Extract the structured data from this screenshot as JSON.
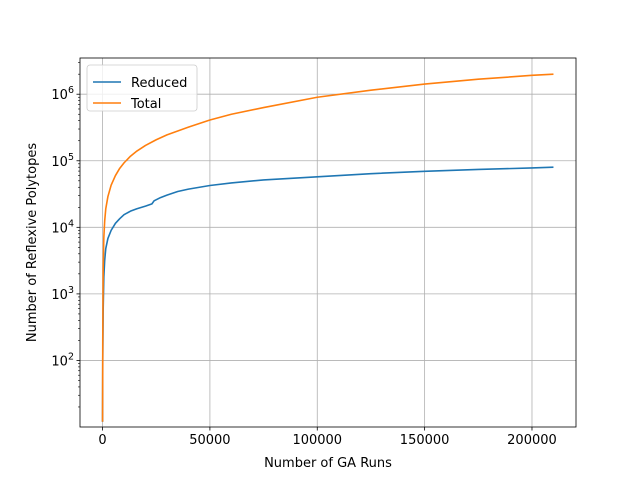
{
  "chart_data": {
    "type": "line",
    "title": "",
    "xlabel": "Number of GA Runs",
    "ylabel": "Number of Reflexive Polytopes",
    "xscale": "linear",
    "yscale": "log",
    "xlim": [
      -10500,
      220500
    ],
    "ylim": [
      10,
      3500000
    ],
    "grid": true,
    "legend_position": "top-left",
    "x_ticks": [
      {
        "value": 0,
        "label": "0"
      },
      {
        "value": 50000,
        "label": "50000"
      },
      {
        "value": 100000,
        "label": "100000"
      },
      {
        "value": 150000,
        "label": "150000"
      },
      {
        "value": 200000,
        "label": "200000"
      }
    ],
    "y_ticks": [
      {
        "value": 100,
        "base": "10",
        "exp": "2"
      },
      {
        "value": 1000,
        "base": "10",
        "exp": "3"
      },
      {
        "value": 10000,
        "base": "10",
        "exp": "4"
      },
      {
        "value": 100000,
        "base": "10",
        "exp": "5"
      },
      {
        "value": 1000000,
        "base": "10",
        "exp": "6"
      }
    ],
    "series": [
      {
        "name": "Reduced",
        "color": "#1f77b4",
        "x": [
          0,
          100,
          300,
          600,
          1000,
          1500,
          2500,
          4000,
          6000,
          8000,
          10000,
          13000,
          16000,
          20000,
          23000,
          24000,
          27000,
          30000,
          35000,
          40000,
          50000,
          60000,
          75000,
          100000,
          125000,
          150000,
          175000,
          200000,
          210000
        ],
        "y": [
          12,
          100,
          600,
          1800,
          3200,
          4800,
          6800,
          9000,
          11500,
          13500,
          15500,
          17500,
          19000,
          20800,
          22500,
          25000,
          28000,
          30500,
          34500,
          37500,
          42500,
          46500,
          51500,
          57500,
          64000,
          69500,
          74000,
          78000,
          80000
        ]
      },
      {
        "name": "Total",
        "color": "#ff7f0e",
        "x": [
          0,
          100,
          300,
          600,
          1000,
          1500,
          2500,
          4000,
          6000,
          8000,
          10000,
          13000,
          16000,
          20000,
          25000,
          30000,
          40000,
          50000,
          60000,
          75000,
          100000,
          125000,
          150000,
          175000,
          200000,
          210000
        ],
        "y": [
          12,
          200,
          2500,
          7000,
          12500,
          19000,
          29000,
          43000,
          60000,
          77000,
          93000,
          117000,
          140000,
          170000,
          207000,
          245000,
          320000,
          410000,
          500000,
          630000,
          900000,
          1150000,
          1420000,
          1680000,
          1920000,
          2000000
        ]
      }
    ]
  }
}
